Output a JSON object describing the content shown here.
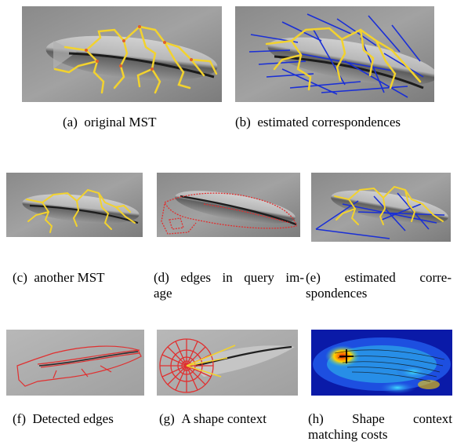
{
  "panels": [
    {
      "id": "a",
      "tag": "(a)",
      "caption": "original MST"
    },
    {
      "id": "b",
      "tag": "(b)",
      "caption": "estimated correspondences"
    },
    {
      "id": "c",
      "tag": "(c)",
      "caption": "another MST"
    },
    {
      "id": "d",
      "tag": "(d)",
      "caption_line1": "edges in query im-",
      "caption_line2": "age"
    },
    {
      "id": "e",
      "tag": "(e)",
      "caption_line1": "estimated corre-",
      "caption_line2": "spondences"
    },
    {
      "id": "f",
      "tag": "(f)",
      "caption": "Detected edges"
    },
    {
      "id": "g",
      "tag": "(g)",
      "caption": "A shape context"
    },
    {
      "id": "h",
      "tag": "(h)",
      "caption_line1": "Shape context",
      "caption_line2": "matching costs"
    }
  ],
  "colors": {
    "mst_yellow": "#f2d22e",
    "mst_node": "#e0602a",
    "correspondence_blue": "#1a2fd6",
    "edge_red": "#e03030",
    "heat_blue": "#0a1aa8"
  }
}
